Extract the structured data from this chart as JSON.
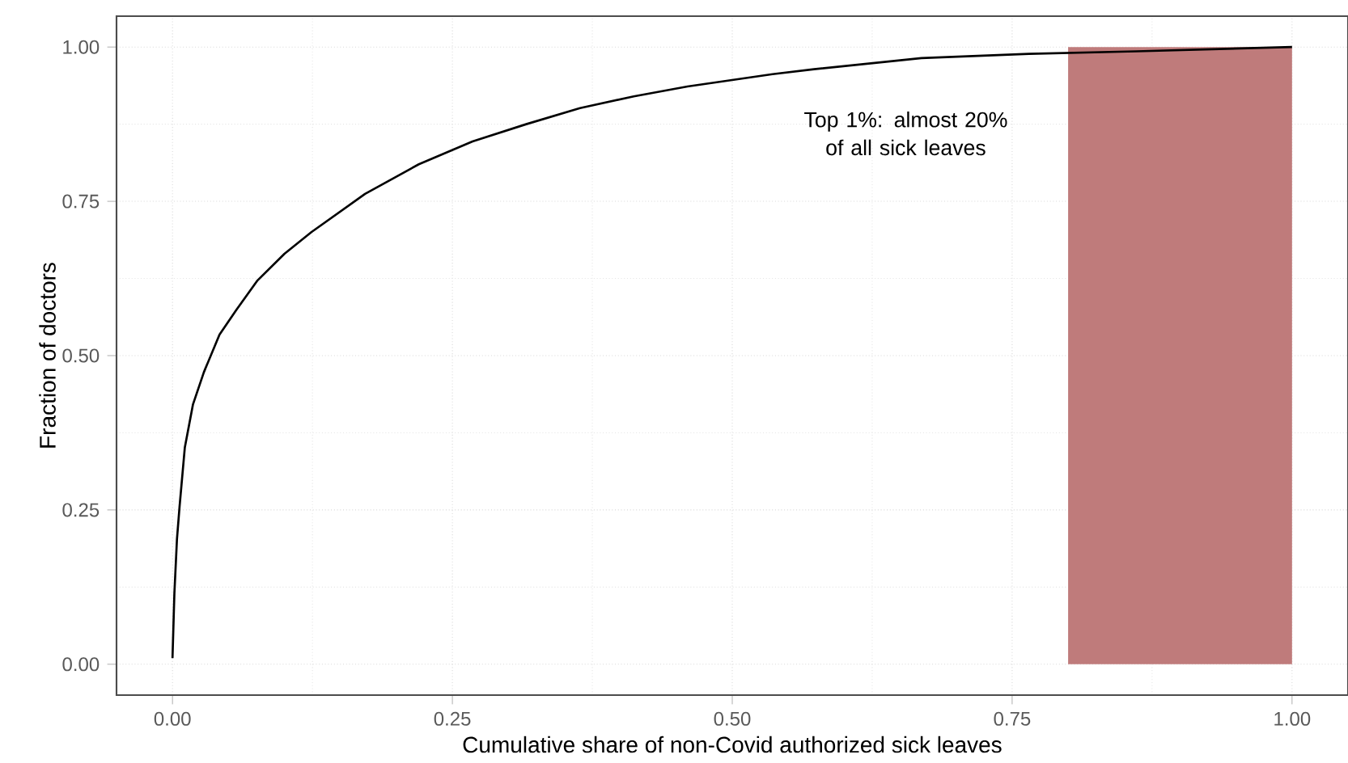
{
  "chart_data": {
    "type": "line",
    "xlabel": "Cumulative share of non-Covid authorized sick leaves",
    "ylabel": "Fraction of doctors",
    "xlim": [
      -0.05,
      1.05
    ],
    "ylim": [
      -0.05,
      1.05
    ],
    "xticks": [
      {
        "value": 0,
        "label": "0.00"
      },
      0.25,
      {
        "value": 0.5,
        "label": "0.50"
      },
      0.75,
      {
        "value": 1,
        "label": "1.00"
      }
    ],
    "yticks": [
      {
        "value": 0,
        "label": "0.00"
      },
      0.25,
      {
        "value": 0.5,
        "label": "0.50"
      },
      0.75,
      {
        "value": 1,
        "label": "1.00"
      }
    ],
    "grid": true,
    "marker": "none",
    "line_style": "solid",
    "annotations": [
      "Top 1%: almost 20% of all sick leaves"
    ],
    "series": [
      {
        "type": "area",
        "color": "#bf7b7b",
        "x": [
          0.8,
          1.0
        ],
        "values": [
          1.0,
          1.0
        ]
      },
      {
        "color": "#000000",
        "x": [
          0,
          0.0017,
          0.004,
          0.0063,
          0.011,
          0.0183,
          0.028,
          0.042,
          0.057,
          0.076,
          0.1,
          0.124,
          0.172,
          0.22,
          0.268,
          0.316,
          0.364,
          0.412,
          0.46,
          0.536,
          0.573,
          0.669,
          0.765,
          0.861,
          1.0
        ],
        "values": [
          0.01,
          0.115,
          0.203,
          0.255,
          0.351,
          0.421,
          0.473,
          0.534,
          0.574,
          0.622,
          0.665,
          0.7,
          0.762,
          0.81,
          0.847,
          0.875,
          0.901,
          0.92,
          0.936,
          0.956,
          0.964,
          0.982,
          0.989,
          0.993,
          1.0
        ]
      }
    ]
  }
}
